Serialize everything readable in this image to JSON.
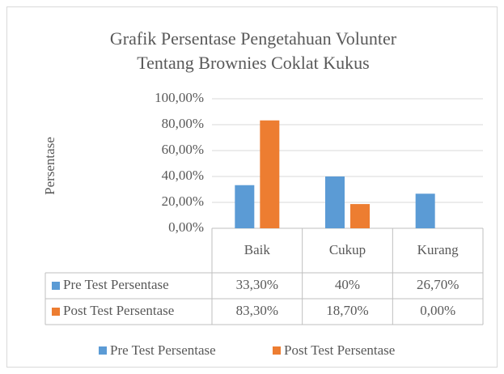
{
  "chart_data": {
    "type": "bar",
    "title": "Grafik Persentase Pengetahuan Volunter",
    "subtitle": "Tentang Brownies Coklat Kukus",
    "y_label": "Persentase",
    "categories": [
      "Baik",
      "Cukup",
      "Kurang"
    ],
    "series": [
      {
        "name": "Pre Test Persentase",
        "color": "#5b9bd5",
        "values": [
          33.3,
          40,
          26.7
        ],
        "value_labels": [
          "33,30%",
          "40%",
          "26,70%"
        ]
      },
      {
        "name": "Post Test Persentase",
        "color": "#ed7d31",
        "values": [
          83.3,
          18.7,
          0
        ],
        "value_labels": [
          "83,30%",
          "18,70%",
          "0,00%"
        ]
      }
    ],
    "ylim": [
      0,
      100
    ],
    "yticks": [
      {
        "value": 0,
        "label": "0,00%"
      },
      {
        "value": 20,
        "label": "20,00%"
      },
      {
        "value": 40,
        "label": "40,00%"
      },
      {
        "value": 60,
        "label": "60,00%"
      },
      {
        "value": 80,
        "label": "80,00%"
      },
      {
        "value": 100,
        "label": "100,00%"
      }
    ],
    "grid": true,
    "legend": "bottom"
  }
}
